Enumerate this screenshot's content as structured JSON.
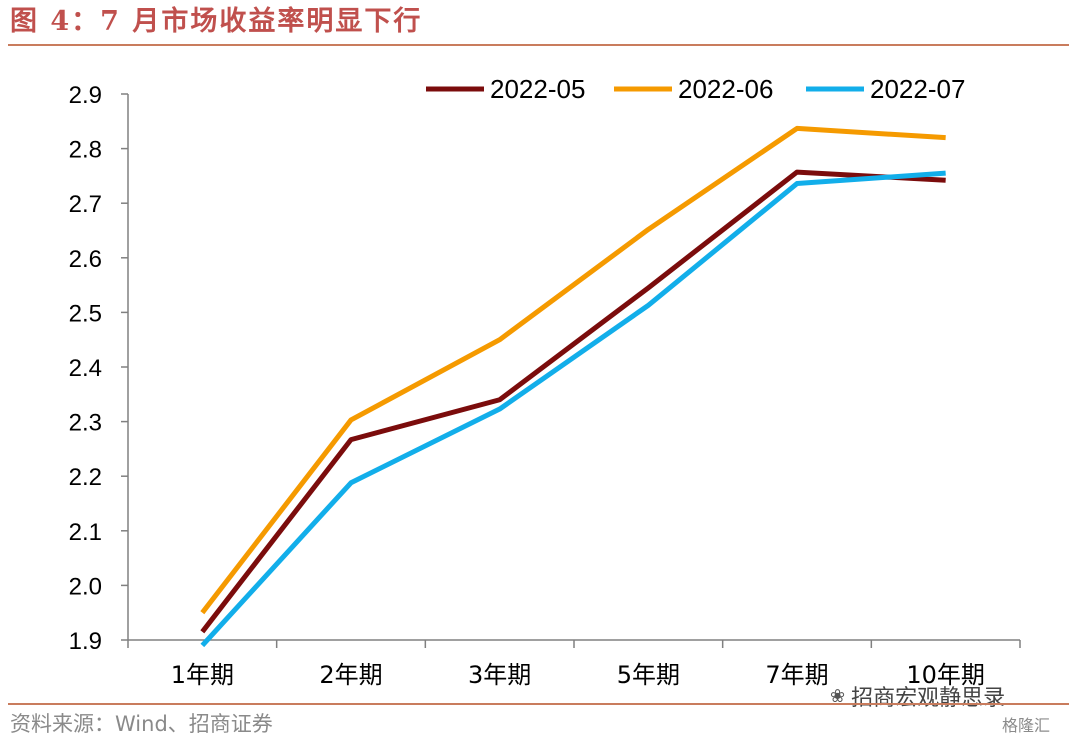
{
  "figure": {
    "title": "图 4：7 月市场收益率明显下行",
    "source": "资料来源：Wind、招商证券",
    "watermark": "招商宏观静思录",
    "watermark_icon": "wechat-icon",
    "watermark2": "格隆汇"
  },
  "colors": {
    "title": "#c0504d",
    "rule": "#c97c5d",
    "series": [
      "#7b0c0c",
      "#f59a00",
      "#12aeea"
    ]
  },
  "chart_data": {
    "type": "line",
    "title": "",
    "xlabel": "",
    "ylabel": "",
    "categories": [
      "1年期",
      "2年期",
      "3年期",
      "5年期",
      "7年期",
      "10年期"
    ],
    "series": [
      {
        "name": "2022-05",
        "values": [
          1.915,
          2.267,
          2.34,
          2.545,
          2.757,
          2.742
        ]
      },
      {
        "name": "2022-06",
        "values": [
          1.95,
          2.303,
          2.45,
          2.652,
          2.837,
          2.82
        ]
      },
      {
        "name": "2022-07",
        "values": [
          1.89,
          2.188,
          2.323,
          2.513,
          2.736,
          2.755
        ]
      }
    ],
    "ylim": [
      1.9,
      2.9
    ],
    "yticks": [
      1.9,
      2.0,
      2.1,
      2.2,
      2.3,
      2.4,
      2.5,
      2.6,
      2.7,
      2.8,
      2.9
    ],
    "ytick_labels": [
      "1.9",
      "2.0",
      "2.1",
      "2.2",
      "2.3",
      "2.4",
      "2.5",
      "2.6",
      "2.7",
      "2.8",
      "2.9"
    ],
    "grid": false,
    "legend_position": "top"
  }
}
